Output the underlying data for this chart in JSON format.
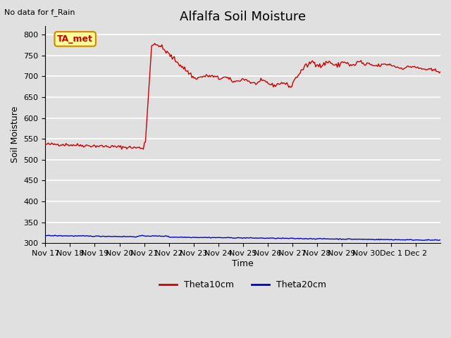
{
  "title": "Alfalfa Soil Moisture",
  "subtitle": "No data for f_Rain",
  "xlabel": "Time",
  "ylabel": "Soil Moisture",
  "ylim": [
    300,
    820
  ],
  "yticks": [
    300,
    350,
    400,
    450,
    500,
    550,
    600,
    650,
    700,
    750,
    800
  ],
  "bg_color": "#e0e0e0",
  "plot_bg_color": "#e0e0e0",
  "grid_color": "#ffffff",
  "theta10_color": "#cc0000",
  "theta20_color": "#0000cc",
  "legend_label1": "Theta10cm",
  "legend_label2": "Theta20cm",
  "annotation_text": "TA_met",
  "annotation_bg": "#ffff99",
  "annotation_border": "#cc8800",
  "xtick_labels": [
    "Nov 17",
    "Nov 18",
    "Nov 19",
    "Nov 20",
    "Nov 21",
    "Nov 22",
    "Nov 23",
    "Nov 24",
    "Nov 25",
    "Nov 26",
    "Nov 27",
    "Nov 28",
    "Nov 29",
    "Nov 30",
    "Dec 1",
    "Dec 2"
  ],
  "title_fontsize": 13,
  "axis_label_fontsize": 9,
  "tick_fontsize": 8
}
